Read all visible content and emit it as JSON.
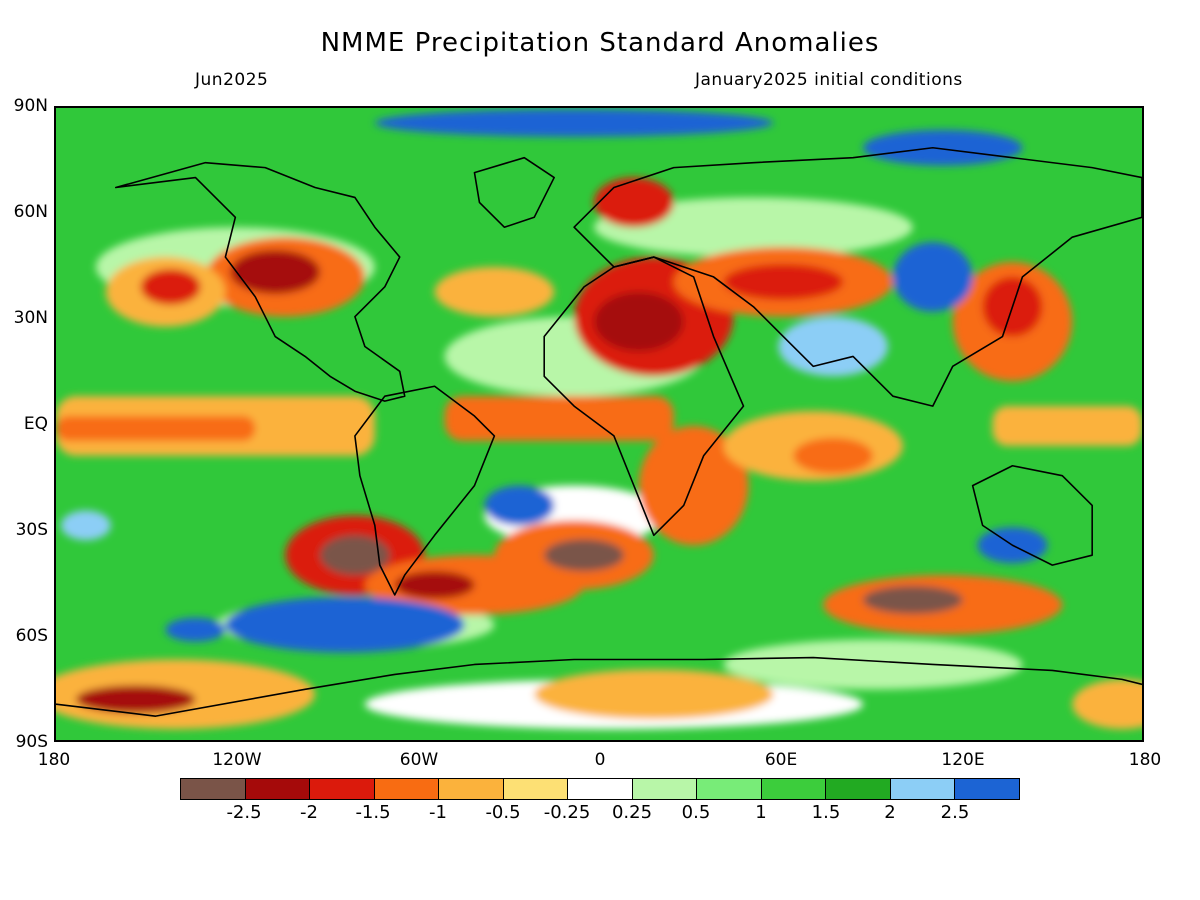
{
  "title": "NMME Precipitation Standard Anomalies",
  "subtitle_left": "Jun2025",
  "subtitle_right": "January2025 initial conditions",
  "lat_labels": [
    "90N",
    "60N",
    "30N",
    "EQ",
    "30S",
    "60S",
    "90S"
  ],
  "lon_labels": [
    "180",
    "120W",
    "60W",
    "0",
    "60E",
    "120E",
    "180"
  ],
  "colorbar": {
    "colors": [
      "#7a5448",
      "#a50a0a",
      "#db1a0c",
      "#f86c12",
      "#fbb23c",
      "#fde074",
      "#ffffff",
      "#b8f6a8",
      "#78ec78",
      "#3ccd3c",
      "#22aa22",
      "#8ccef6",
      "#1c64d4"
    ],
    "labels": [
      "-2.5",
      "-2",
      "-1.5",
      "-1",
      "-0.5",
      "-0.25",
      "0.25",
      "0.5",
      "1",
      "1.5",
      "2",
      "2.5"
    ]
  },
  "colors": {
    "background_ocean_land": "#30c83a",
    "coastline": "#000000"
  }
}
